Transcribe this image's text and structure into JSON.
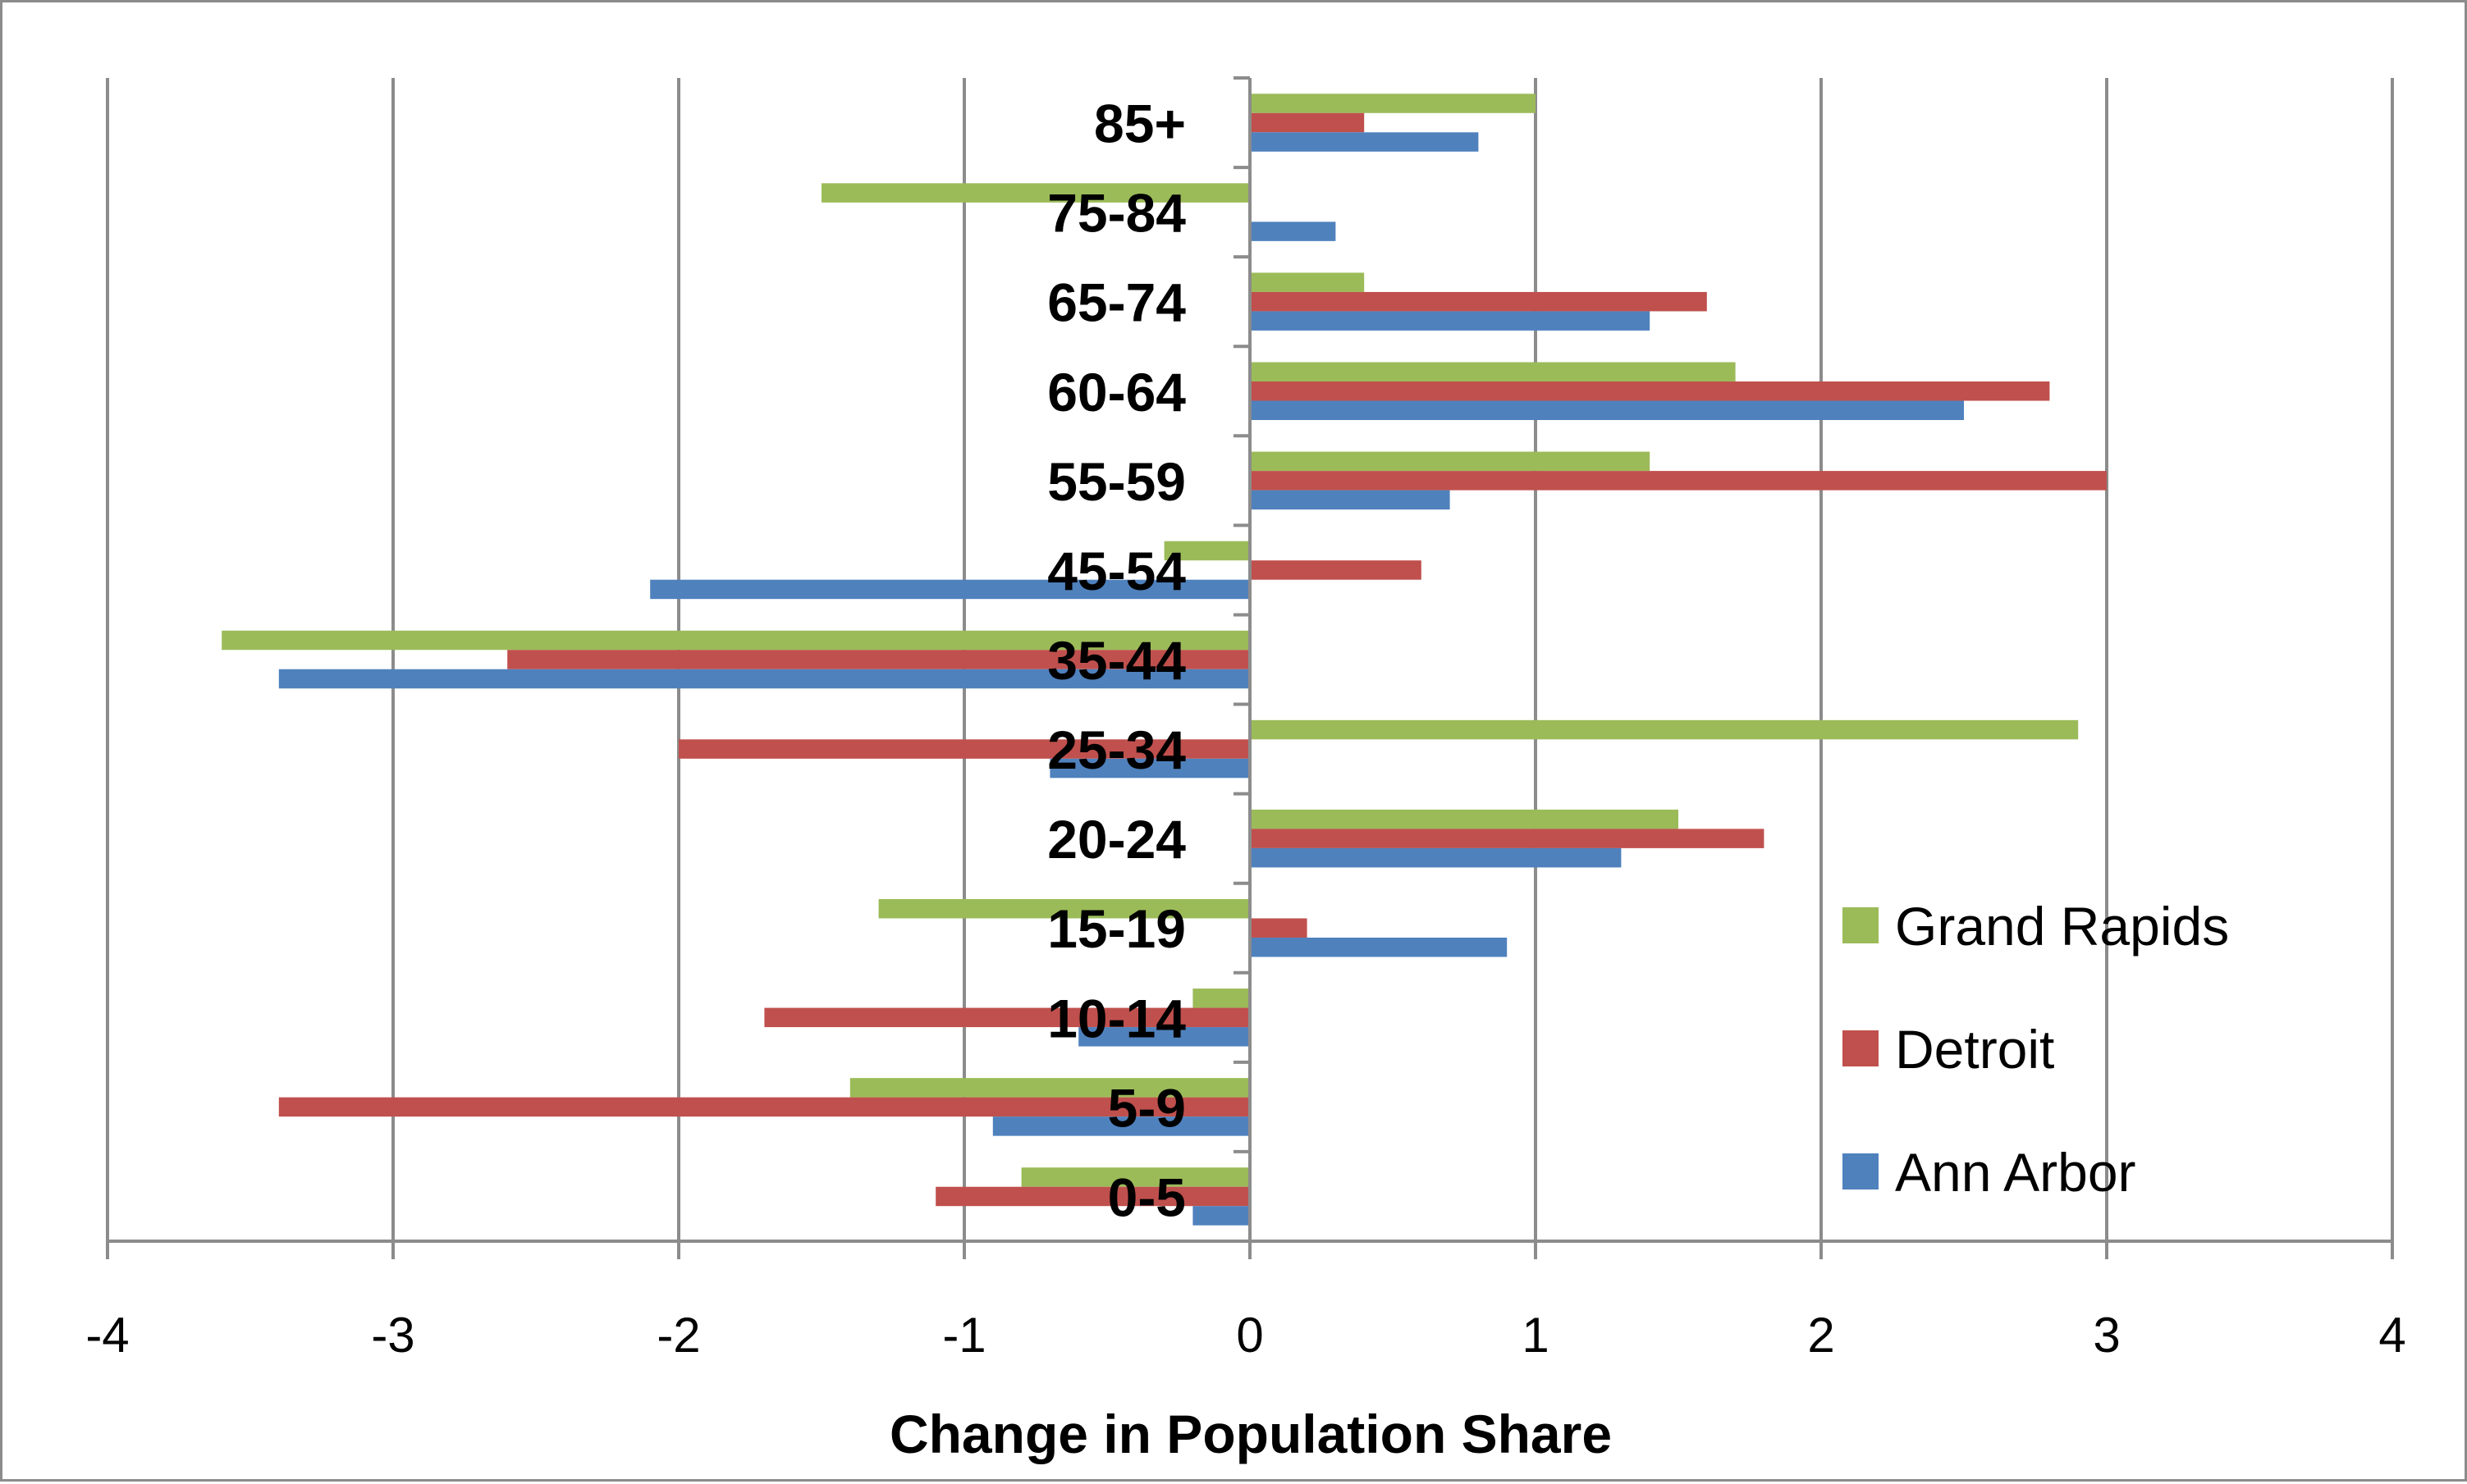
{
  "chart_data": {
    "type": "bar",
    "orientation": "horizontal",
    "categories": [
      "0-5",
      "5-9",
      "10-14",
      "15-19",
      "20-24",
      "25-34",
      "35-44",
      "45-54",
      "55-59",
      "60-64",
      "65-74",
      "75-84",
      "85+"
    ],
    "series": [
      {
        "name": "Ann Arbor",
        "color": "#4f81bd",
        "values": [
          -0.2,
          -0.9,
          -0.6,
          0.9,
          1.3,
          -0.7,
          -3.4,
          -2.1,
          0.7,
          2.5,
          1.4,
          0.3,
          0.8
        ]
      },
      {
        "name": "Detroit",
        "color": "#c0504d",
        "values": [
          -1.1,
          -3.4,
          -1.7,
          0.2,
          1.8,
          -2.0,
          -2.6,
          0.6,
          3.0,
          2.8,
          1.6,
          0.0,
          0.4
        ]
      },
      {
        "name": "Grand Rapids",
        "color": "#9bbb59",
        "values": [
          -0.8,
          -1.4,
          -0.2,
          -1.3,
          1.5,
          2.9,
          -3.6,
          -0.3,
          1.4,
          1.7,
          0.4,
          -1.5,
          1.0
        ]
      }
    ],
    "xlim": [
      -4,
      4
    ],
    "x_ticks": [
      "-4",
      "-3",
      "-2",
      "-1",
      "0",
      "1",
      "2",
      "3",
      "4"
    ],
    "xlabel": "Change in Population Share",
    "ylabel": "",
    "title": "",
    "grid": true,
    "legend_position": "right",
    "legend_order": [
      "Grand Rapids",
      "Detroit",
      "Ann Arbor"
    ]
  }
}
